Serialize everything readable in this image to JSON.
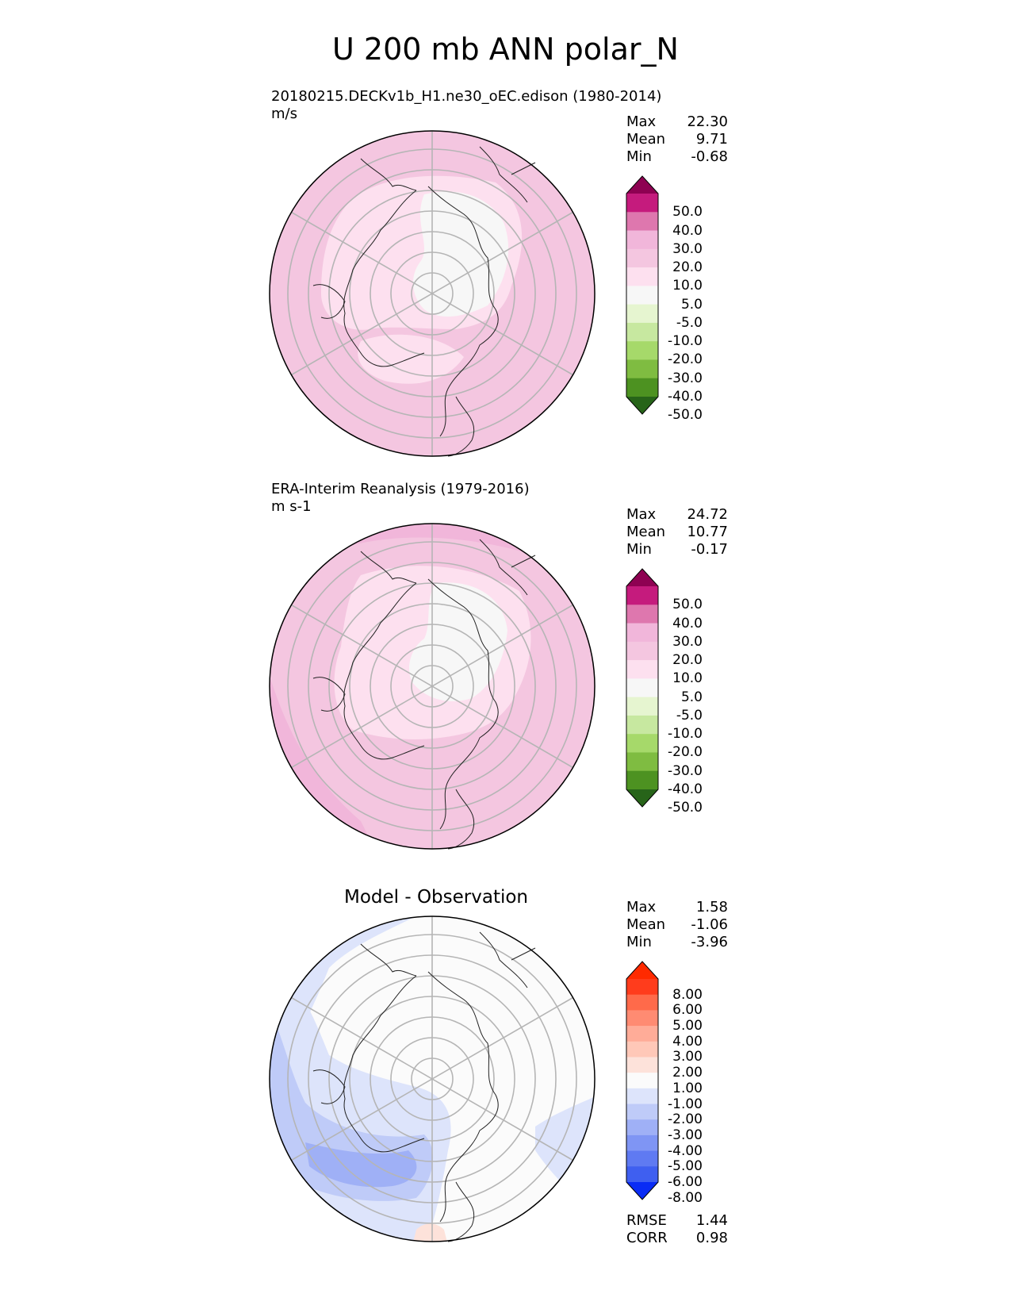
{
  "title": "U 200 mb ANN polar_N",
  "panels": [
    {
      "id": "test",
      "title_line1": "20180215.DECKv1b_H1.ne30_oEC.edison (1980-2014)",
      "title_line2": "m/s",
      "stats": [
        {
          "label": "Max",
          "value": "22.30"
        },
        {
          "label": "Mean",
          "value": "9.71"
        },
        {
          "label": "Min",
          "value": "-0.68"
        }
      ],
      "colorbar": {
        "labels": [
          "50.0",
          "40.0",
          "30.0",
          "20.0",
          "10.0",
          "5.0",
          "-5.0",
          "-10.0",
          "-20.0",
          "-30.0",
          "-40.0",
          "-50.0"
        ],
        "colors": [
          "#8e0152",
          "#c51b7d",
          "#de77ae",
          "#f1b6da",
          "#f4c6e0",
          "#fde0ef",
          "#f7f7f7",
          "#e6f5d0",
          "#c7e8a0",
          "#a6d96a",
          "#7fbc41",
          "#4d9221",
          "#276419"
        ]
      }
    },
    {
      "id": "ref",
      "title_line1": "ERA-Interim Reanalysis (1979-2016)",
      "title_line2": "m s-1",
      "stats": [
        {
          "label": "Max",
          "value": "24.72"
        },
        {
          "label": "Mean",
          "value": "10.77"
        },
        {
          "label": "Min",
          "value": "-0.17"
        }
      ],
      "colorbar": {
        "labels": [
          "50.0",
          "40.0",
          "30.0",
          "20.0",
          "10.0",
          "5.0",
          "-5.0",
          "-10.0",
          "-20.0",
          "-30.0",
          "-40.0",
          "-50.0"
        ],
        "colors": [
          "#8e0152",
          "#c51b7d",
          "#de77ae",
          "#f1b6da",
          "#f4c6e0",
          "#fde0ef",
          "#f7f7f7",
          "#e6f5d0",
          "#c7e8a0",
          "#a6d96a",
          "#7fbc41",
          "#4d9221",
          "#276419"
        ]
      }
    },
    {
      "id": "diff",
      "title_center": "Model - Observation",
      "stats": [
        {
          "label": "Max",
          "value": "1.58"
        },
        {
          "label": "Mean",
          "value": "-1.06"
        },
        {
          "label": "Min",
          "value": "-3.96"
        }
      ],
      "metrics": [
        {
          "label": "RMSE",
          "value": "1.44"
        },
        {
          "label": "CORR",
          "value": "0.98"
        }
      ],
      "colorbar": {
        "labels": [
          "8.00",
          "6.00",
          "5.00",
          "4.00",
          "3.00",
          "2.00",
          "1.00",
          "-1.00",
          "-2.00",
          "-3.00",
          "-4.00",
          "-5.00",
          "-6.00",
          "-8.00"
        ],
        "colors": [
          "#ff2a00",
          "#ff3c1c",
          "#ff6a4a",
          "#ff8b72",
          "#ffac98",
          "#ffc8b8",
          "#fde2da",
          "#fbfbfb",
          "#dde4fb",
          "#bfcbf8",
          "#9fb0f6",
          "#7f95f4",
          "#5f7af2",
          "#3f5ff0",
          "#0a2cf5"
        ]
      }
    }
  ]
}
